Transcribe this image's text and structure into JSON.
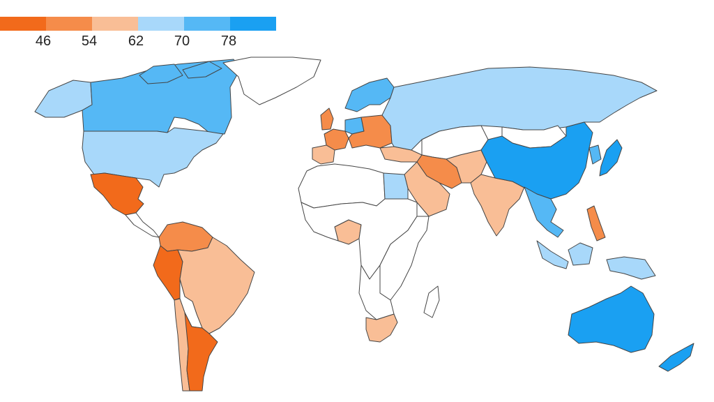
{
  "legend": {
    "ticks": [
      "46",
      "54",
      "62",
      "70",
      "78"
    ],
    "colors": [
      "#f26a1b",
      "#f58c4a",
      "#f9be96",
      "#a8d8fa",
      "#55b8f5",
      "#1aa0f2"
    ]
  },
  "colors": {
    "no_data": "#ffffff",
    "border": "#444444"
  },
  "regions": [
    {
      "id": "canada",
      "bin": 4
    },
    {
      "id": "alaska",
      "bin": 3
    },
    {
      "id": "usa",
      "bin": 3
    },
    {
      "id": "greenland",
      "bin": -1
    },
    {
      "id": "mexico",
      "bin": 0
    },
    {
      "id": "central-america",
      "bin": -1
    },
    {
      "id": "colombia-venezuela",
      "bin": 1
    },
    {
      "id": "peru",
      "bin": 0
    },
    {
      "id": "brazil",
      "bin": 2
    },
    {
      "id": "argentina",
      "bin": 0
    },
    {
      "id": "chile",
      "bin": 2
    },
    {
      "id": "bolivia-paraguay",
      "bin": -1
    },
    {
      "id": "scandinavia",
      "bin": 4
    },
    {
      "id": "western-europe",
      "bin": 1
    },
    {
      "id": "iberia",
      "bin": 2
    },
    {
      "id": "germany",
      "bin": 4
    },
    {
      "id": "uk-ireland",
      "bin": 1
    },
    {
      "id": "eastern-europe",
      "bin": 1
    },
    {
      "id": "turkey",
      "bin": 2
    },
    {
      "id": "russia",
      "bin": 3
    },
    {
      "id": "central-asia",
      "bin": -1
    },
    {
      "id": "mongolia",
      "bin": -1
    },
    {
      "id": "china",
      "bin": 5
    },
    {
      "id": "japan",
      "bin": 5
    },
    {
      "id": "korea",
      "bin": 4
    },
    {
      "id": "iran-iraq",
      "bin": 1
    },
    {
      "id": "saudi-arabia",
      "bin": 2
    },
    {
      "id": "india",
      "bin": 2
    },
    {
      "id": "pakistan-afghanistan",
      "bin": 2
    },
    {
      "id": "southeast-asia",
      "bin": 4
    },
    {
      "id": "philippines",
      "bin": 1
    },
    {
      "id": "indonesia",
      "bin": 3
    },
    {
      "id": "australia",
      "bin": 5
    },
    {
      "id": "new-zealand",
      "bin": 5
    },
    {
      "id": "north-africa",
      "bin": -1
    },
    {
      "id": "egypt",
      "bin": 3
    },
    {
      "id": "nigeria",
      "bin": 2
    },
    {
      "id": "central-africa",
      "bin": -1
    },
    {
      "id": "east-africa",
      "bin": -1
    },
    {
      "id": "southern-africa",
      "bin": -1
    },
    {
      "id": "south-africa",
      "bin": 2
    },
    {
      "id": "madagascar",
      "bin": -1
    }
  ]
}
